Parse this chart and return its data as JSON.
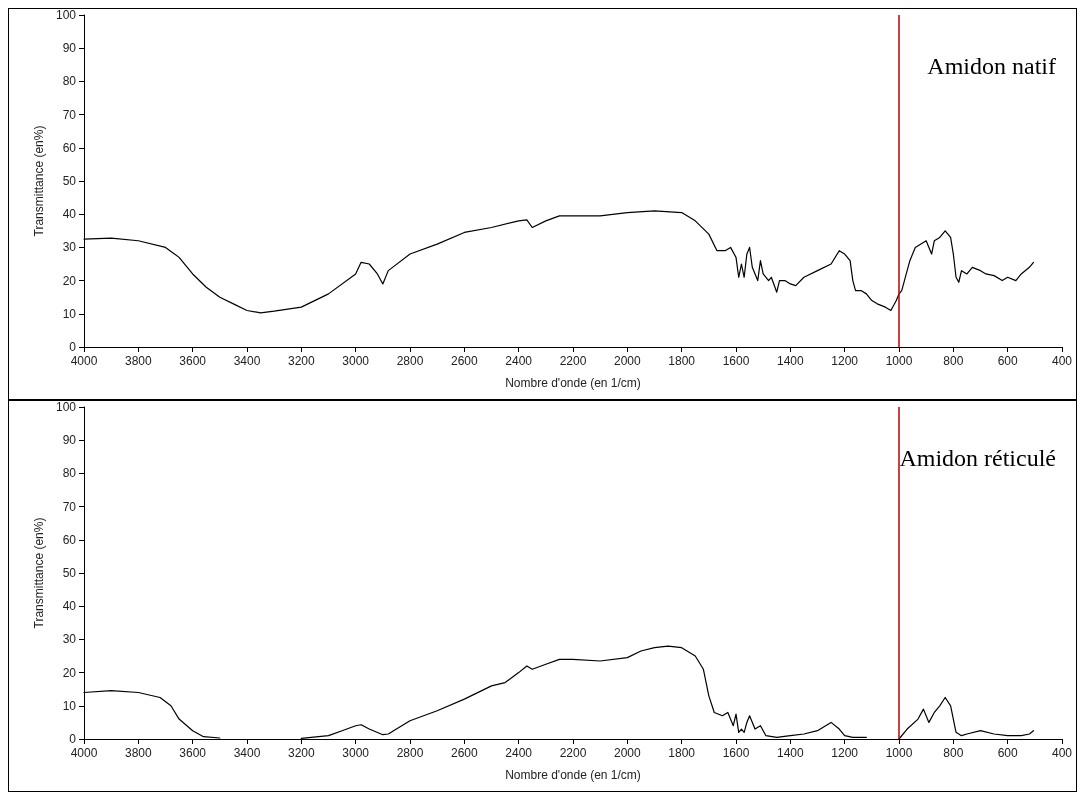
{
  "chart_data": [
    {
      "type": "line",
      "xlabel": "Nombre d'onde (en 1/cm)",
      "ylabel": "Transmittance (en%)",
      "annotations": [
        "Amidon natif"
      ],
      "xlim": [
        4000,
        400
      ],
      "ylim": [
        0,
        100
      ],
      "xticks": [
        4000,
        3800,
        3600,
        3400,
        3200,
        3000,
        2800,
        2600,
        2400,
        2200,
        2000,
        1800,
        1600,
        1400,
        1200,
        1000,
        800,
        600,
        400
      ],
      "yticks": [
        0,
        10,
        20,
        30,
        40,
        50,
        60,
        70,
        80,
        90,
        100
      ],
      "grid": false,
      "marker": "none",
      "line_style": "solid",
      "ref_lines": [
        {
          "axis": "x",
          "value": 1000,
          "color": "#c00000"
        }
      ],
      "series": [
        {
          "color": "#000000",
          "x": [
            4000,
            3900,
            3800,
            3700,
            3650,
            3600,
            3550,
            3500,
            3450,
            3400,
            3350,
            3300,
            3200,
            3100,
            3000,
            2980,
            2950,
            2920,
            2900,
            2880,
            2800,
            2700,
            2600,
            2500,
            2400,
            2370,
            2350,
            2300,
            2250,
            2200,
            2100,
            2000,
            1900,
            1800,
            1750,
            1700,
            1670,
            1640,
            1620,
            1600,
            1590,
            1580,
            1570,
            1560,
            1550,
            1540,
            1520,
            1510,
            1500,
            1480,
            1470,
            1450,
            1440,
            1420,
            1400,
            1380,
            1350,
            1300,
            1250,
            1220,
            1200,
            1180,
            1170,
            1160,
            1140,
            1120,
            1100,
            1080,
            1050,
            1030,
            1010,
            1000,
            990,
            980,
            960,
            940,
            900,
            880,
            870,
            850,
            830,
            810,
            800,
            790,
            780,
            770,
            750,
            730,
            700,
            680,
            650,
            620,
            600,
            570,
            550,
            520,
            505
          ],
          "values": [
            32.5,
            32.8,
            32,
            30,
            27,
            22,
            18,
            15,
            13,
            11,
            10.3,
            10.8,
            12,
            16,
            22,
            25.5,
            25,
            22,
            19,
            23,
            28,
            31,
            34.5,
            36,
            38,
            38.3,
            36,
            38,
            39.5,
            39.5,
            39.5,
            40.5,
            41,
            40.5,
            38,
            34,
            29,
            29,
            30,
            27,
            21,
            25,
            21,
            28,
            30,
            24,
            20,
            26,
            22,
            20,
            21,
            16.5,
            20,
            20,
            19,
            18.5,
            21,
            23,
            25,
            29,
            28,
            26,
            20,
            17,
            17,
            16,
            14,
            13,
            12,
            11,
            14,
            16,
            17,
            20,
            26,
            30,
            32,
            28,
            32,
            33,
            35,
            33,
            28,
            21,
            19.5,
            23,
            22,
            24,
            23,
            22,
            21.5,
            20,
            21,
            20,
            22,
            24,
            25.5
          ]
        }
      ]
    },
    {
      "type": "line",
      "xlabel": "Nombre d'onde (en 1/cm)",
      "ylabel": "Transmittance (en%)",
      "annotations": [
        "Amidon réticulé"
      ],
      "xlim": [
        4000,
        400
      ],
      "ylim": [
        0,
        100
      ],
      "xticks": [
        4000,
        3800,
        3600,
        3400,
        3200,
        3000,
        2800,
        2600,
        2400,
        2200,
        2000,
        1800,
        1600,
        1400,
        1200,
        1000,
        800,
        600,
        400
      ],
      "yticks": [
        0,
        10,
        20,
        30,
        40,
        50,
        60,
        70,
        80,
        90,
        100
      ],
      "grid": false,
      "marker": "none",
      "line_style": "solid",
      "ref_lines": [
        {
          "axis": "x",
          "value": 1000,
          "color": "#c00000"
        }
      ],
      "series": [
        {
          "color": "#000000",
          "x": [
            4000,
            3900,
            3800,
            3720,
            3680,
            3650,
            3600,
            3560,
            3500,
            3350,
            3200,
            3100,
            3050,
            3000,
            2980,
            2950,
            2900,
            2880,
            2850,
            2800,
            2700,
            2600,
            2500,
            2450,
            2400,
            2370,
            2350,
            2300,
            2250,
            2200,
            2100,
            2000,
            1950,
            1900,
            1850,
            1800,
            1750,
            1720,
            1700,
            1680,
            1650,
            1630,
            1610,
            1600,
            1590,
            1580,
            1570,
            1560,
            1550,
            1530,
            1510,
            1490,
            1450,
            1400,
            1350,
            1300,
            1270,
            1250,
            1220,
            1200,
            1170,
            1120,
            1060,
            1000,
            970,
            930,
            910,
            890,
            870,
            850,
            830,
            810,
            790,
            770,
            750,
            700,
            650,
            600,
            550,
            520,
            505
          ],
          "values": [
            14,
            14.6,
            14,
            12.5,
            10,
            6,
            2.5,
            0.7,
            0.3,
            null,
            0.2,
            1,
            2.5,
            4,
            4.3,
            3,
            1.3,
            1.5,
            3,
            5.5,
            8.5,
            12,
            16,
            17,
            20,
            22,
            21,
            22.5,
            24,
            24,
            23.5,
            24.5,
            26.5,
            27.5,
            28,
            27.5,
            25,
            21,
            13,
            8,
            7,
            8,
            4,
            7.5,
            2,
            3,
            2,
            5,
            7,
            3,
            4,
            1,
            0.5,
            1,
            1.5,
            2.5,
            4,
            5,
            3,
            1,
            0.5,
            0.5,
            null,
            0,
            3,
            6,
            9,
            5,
            8,
            10,
            12.5,
            10,
            2,
            1,
            1.5,
            2.5,
            1.5,
            1,
            1,
            1.5,
            2.5
          ]
        }
      ]
    }
  ]
}
